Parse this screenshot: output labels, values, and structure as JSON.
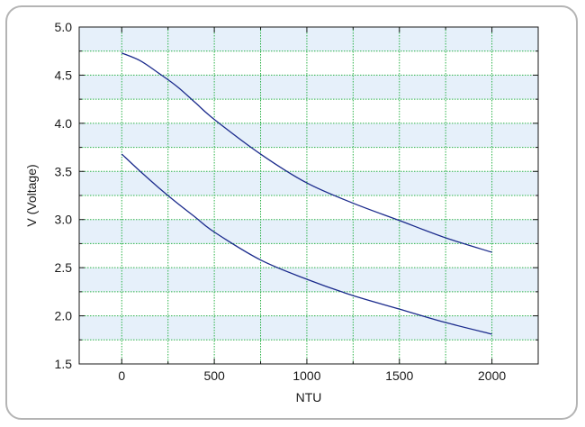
{
  "chart_data": {
    "type": "line",
    "title": "",
    "xlabel": "NTU",
    "ylabel": "V (Voltage)",
    "xlim": [
      -230,
      2250
    ],
    "ylim": [
      1.5,
      5.0
    ],
    "xticks": [
      0,
      500,
      1000,
      1500,
      2000
    ],
    "xtick_labels": [
      "0",
      "500",
      "1000",
      "1500",
      "2000"
    ],
    "yticks": [
      1.5,
      2.0,
      2.5,
      3.0,
      3.5,
      4.0,
      4.5,
      5.0
    ],
    "ytick_labels": [
      "1.5",
      "2.0",
      "2.5",
      "3.0",
      "3.5",
      "4.0",
      "4.5",
      "5.0"
    ],
    "grid": true,
    "grid_style": "dotted",
    "grid_color": "#2db34a",
    "band_color": "#e6f0fa",
    "series": [
      {
        "color": "#1a2a8c",
        "x": [
          0,
          100,
          200,
          300,
          400,
          500,
          750,
          1000,
          1250,
          1500,
          1750,
          2000
        ],
        "y": [
          4.73,
          4.65,
          4.52,
          4.38,
          4.21,
          4.04,
          3.68,
          3.38,
          3.17,
          2.99,
          2.81,
          2.66
        ]
      },
      {
        "color": "#1a2a8c",
        "x": [
          0,
          100,
          200,
          300,
          400,
          500,
          750,
          1000,
          1250,
          1500,
          1750,
          2000
        ],
        "y": [
          3.68,
          3.5,
          3.33,
          3.17,
          3.02,
          2.87,
          2.58,
          2.38,
          2.21,
          2.07,
          1.93,
          1.81
        ]
      }
    ]
  }
}
